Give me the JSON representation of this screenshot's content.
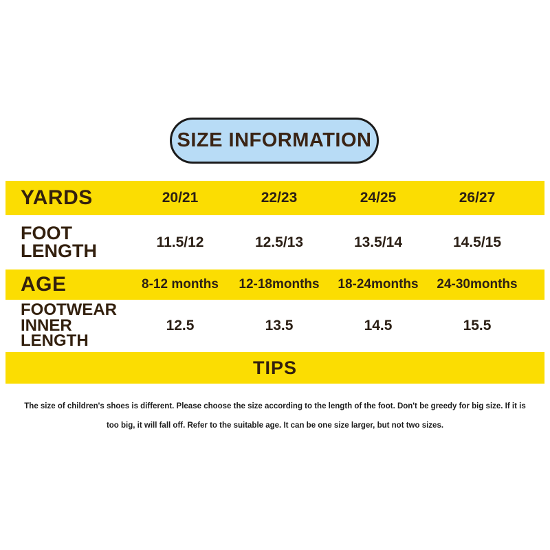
{
  "header": {
    "title": "SIZE INFORMATION"
  },
  "colors": {
    "yellow": "#FBDD02",
    "blue": "#B8DCF6",
    "dark": "#33200E",
    "value": "#2B1F15",
    "outline": "#1B1B1B",
    "tips-text": "#1C1C1C"
  },
  "table": {
    "rows": [
      {
        "label": "YARDS",
        "highlight": true,
        "values": [
          "20/21",
          "22/23",
          "24/25",
          "26/27"
        ]
      },
      {
        "label": "FOOT LENGTH",
        "highlight": false,
        "values": [
          "11.5/12",
          "12.5/13",
          "13.5/14",
          "14.5/15"
        ]
      },
      {
        "label": "AGE",
        "highlight": true,
        "values": [
          "8-12 months",
          "12-18months",
          "18-24months",
          "24-30months"
        ]
      },
      {
        "label": "FOOTWEAR INNER LENGTH",
        "highlight": false,
        "values": [
          "12.5",
          "13.5",
          "14.5",
          "15.5"
        ]
      }
    ]
  },
  "tips": {
    "title": "TIPS",
    "line1": "The size of children's shoes is different. Please choose the size according to the length of the foot. Don't be greedy for big size. If it is",
    "line2": "too big, it will fall off. Refer to the suitable age. It can be one size larger, but not two sizes."
  },
  "chart_data": {
    "type": "table",
    "title": "SIZE INFORMATION",
    "row_headers": [
      "YARDS",
      "FOOT LENGTH",
      "AGE",
      "FOOTWEAR INNER LENGTH"
    ],
    "columns": [
      "20/21",
      "22/23",
      "24/25",
      "26/27"
    ],
    "rows": [
      {
        "header": "YARDS",
        "values": [
          "20/21",
          "22/23",
          "24/25",
          "26/27"
        ]
      },
      {
        "header": "FOOT LENGTH",
        "values": [
          "11.5/12",
          "12.5/13",
          "13.5/14",
          "14.5/15"
        ]
      },
      {
        "header": "AGE",
        "values": [
          "8-12 months",
          "12-18months",
          "18-24months",
          "24-30months"
        ]
      },
      {
        "header": "FOOTWEAR INNER LENGTH",
        "values": [
          "12.5",
          "13.5",
          "14.5",
          "15.5"
        ]
      }
    ],
    "footnote": "The size of children's shoes is different. Please choose the size according to the length of the foot. Don't be greedy for big size. If it is too big, it will fall off. Refer to the suitable age. It can be one size larger, but not two sizes."
  }
}
